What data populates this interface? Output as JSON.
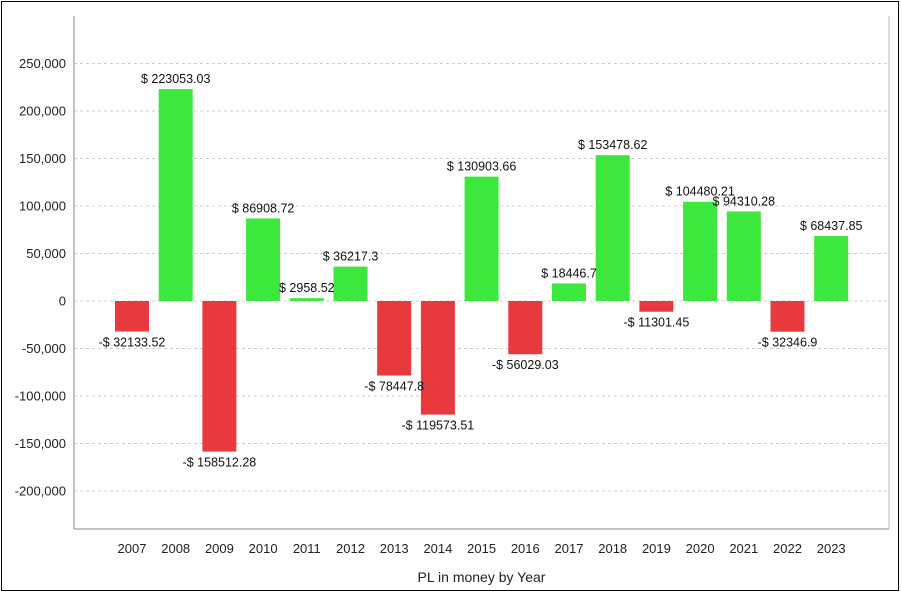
{
  "chart_data": {
    "type": "bar",
    "title": "",
    "xlabel": "PL in money by Year",
    "ylabel": "",
    "ylim": [
      -240000,
      300000
    ],
    "yticks": [
      -200000,
      -150000,
      -100000,
      -50000,
      0,
      50000,
      100000,
      150000,
      200000,
      250000
    ],
    "ytick_labels": [
      "-200,000",
      "-150,000",
      "-100,000",
      "-50,000",
      "0",
      "50,000",
      "100,000",
      "150,000",
      "200,000",
      "250,000"
    ],
    "grid": "horizontal dashed",
    "categories": [
      "2007",
      "2008",
      "2009",
      "2010",
      "2011",
      "2012",
      "2013",
      "2014",
      "2015",
      "2016",
      "2017",
      "2018",
      "2019",
      "2020",
      "2021",
      "2022",
      "2023"
    ],
    "values": [
      -32133.52,
      223053.03,
      -158512.28,
      86908.72,
      2958.52,
      36217.3,
      -78447.8,
      -119573.51,
      130903.66,
      -56029.03,
      18446.7,
      153478.62,
      -11301.45,
      104480.21,
      94310.28,
      -32346.9,
      68437.85
    ],
    "data_labels": [
      "-$ 32133.52",
      "$ 223053.03",
      "-$ 158512.28",
      "$ 86908.72",
      "$ 2958.52",
      "$ 36217.3",
      "-$ 78447.8",
      "-$ 119573.51",
      "$ 130903.66",
      "-$ 56029.03",
      "$ 18446.7",
      "$ 153478.62",
      "-$ 11301.45",
      "$ 104480.21",
      "$ 94310.28",
      "-$ 32346.9",
      "$ 68437.85"
    ],
    "colors": {
      "positive": "#3be83b",
      "negative": "#e8393f",
      "grid": "#cccccc",
      "axis": "#888888"
    }
  }
}
